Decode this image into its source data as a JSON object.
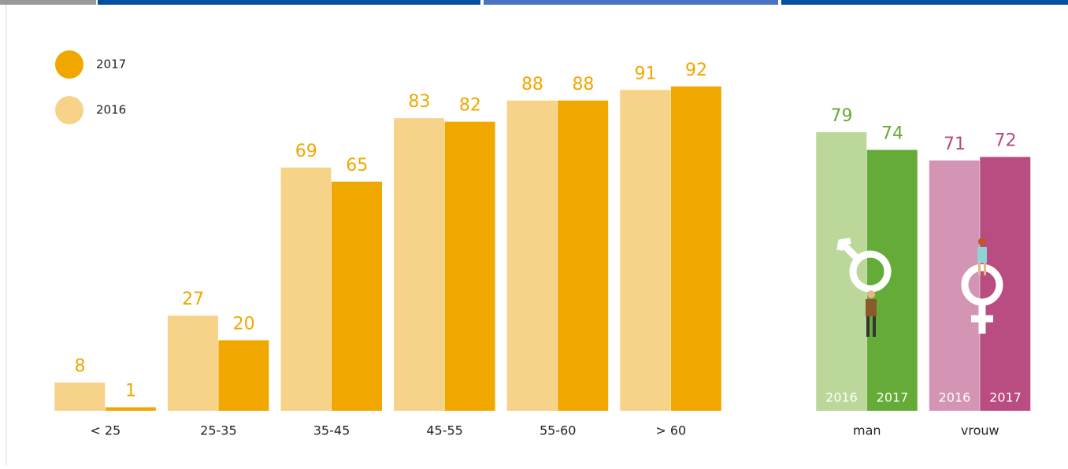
{
  "chart_data": [
    {
      "type": "bar",
      "categories": [
        "< 25",
        "25-35",
        "35-45",
        "45-55",
        "55-60",
        "> 60"
      ],
      "series": [
        {
          "name": "2016",
          "color": "#f7d38a",
          "values": [
            8,
            27,
            69,
            83,
            88,
            91
          ]
        },
        {
          "name": "2017",
          "color": "#f0a800",
          "values": [
            1,
            20,
            65,
            82,
            88,
            92
          ]
        }
      ],
      "label_color": "#f0a800",
      "ylim": [
        0,
        100
      ]
    },
    {
      "type": "bar",
      "categories": [
        "man",
        "vrouw"
      ],
      "series": [
        {
          "name": "2016",
          "colors": [
            "#bcd79a",
            "#d495b5"
          ],
          "values": [
            79,
            71
          ]
        },
        {
          "name": "2017",
          "colors": [
            "#65ab37",
            "#b94c80"
          ],
          "values": [
            74,
            72
          ]
        }
      ],
      "label_colors": [
        "#65ab37",
        "#b94c80"
      ],
      "ylim": [
        0,
        100
      ]
    }
  ]
}
